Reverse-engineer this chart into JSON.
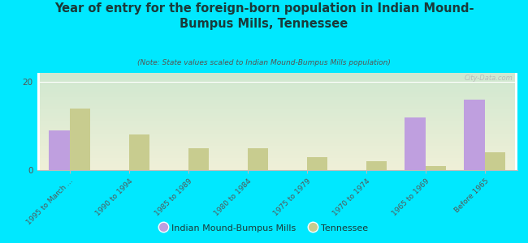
{
  "title": "Year of entry for the foreign-born population in Indian Mound-\nBumpus Mills, Tennessee",
  "subtitle": "(Note: State values scaled to Indian Mound-Bumpus Mills population)",
  "categories": [
    "1995 to March ...",
    "1990 to 1994",
    "1985 to 1989",
    "1980 to 1984",
    "1975 to 1979",
    "1970 to 1974",
    "1965 to 1969",
    "Before 1965"
  ],
  "indian_mound_values": [
    9,
    0,
    0,
    0,
    0,
    0,
    12,
    16
  ],
  "tennessee_values": [
    14,
    8,
    5,
    5,
    3,
    2,
    1,
    4
  ],
  "indian_mound_color": "#bf9fdf",
  "tennessee_color": "#c8cc8f",
  "background_color": "#00e8ff",
  "chart_bg_top": "#d0e8d0",
  "chart_bg_bottom": "#f0f0d8",
  "ylim": [
    0,
    22
  ],
  "yticks": [
    0,
    20
  ],
  "bar_width": 0.35,
  "watermark": "City-Data.com",
  "legend_label_1": "Indian Mound-Bumpus Mills",
  "legend_label_2": "Tennessee"
}
